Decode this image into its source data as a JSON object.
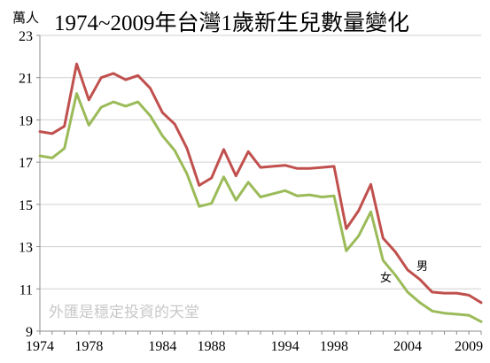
{
  "chart_data": {
    "type": "line",
    "title": "1974~2009年台灣1歲新生兒數量變化",
    "ylabel": "萬人",
    "xlabel": "",
    "xlim": [
      1974,
      2010
    ],
    "ylim": [
      9,
      23
    ],
    "yticks": [
      9,
      11,
      13,
      15,
      17,
      19,
      21,
      23
    ],
    "xticks": [
      1974,
      1978,
      1984,
      1988,
      1994,
      1998,
      2004,
      2009
    ],
    "grid": "horizontal",
    "watermark": "外匯是穩定投資的天堂",
    "x": [
      1974,
      1975,
      1976,
      1977,
      1978,
      1979,
      1980,
      1981,
      1982,
      1983,
      1984,
      1985,
      1986,
      1987,
      1988,
      1989,
      1990,
      1991,
      1992,
      1993,
      1994,
      1995,
      1996,
      1997,
      1998,
      1999,
      2000,
      2001,
      2002,
      2003,
      2004,
      2005,
      2006,
      2007,
      2008,
      2009,
      2010
    ],
    "series": [
      {
        "name": "男",
        "color": "#c0504d",
        "values": [
          18.45,
          18.35,
          18.7,
          21.65,
          19.95,
          21.0,
          21.2,
          20.9,
          21.1,
          20.5,
          19.35,
          18.8,
          17.65,
          15.9,
          16.25,
          17.6,
          16.35,
          17.5,
          16.75,
          16.8,
          16.85,
          16.7,
          16.7,
          16.75,
          16.8,
          13.85,
          14.7,
          15.95,
          13.4,
          12.75,
          11.9,
          11.45,
          10.85,
          10.8,
          10.8,
          10.7,
          10.35
        ]
      },
      {
        "name": "女",
        "color": "#9bbb59",
        "values": [
          17.3,
          17.2,
          17.65,
          20.25,
          18.75,
          19.6,
          19.85,
          19.65,
          19.85,
          19.2,
          18.25,
          17.55,
          16.45,
          14.9,
          15.05,
          16.3,
          15.2,
          16.05,
          15.35,
          15.5,
          15.65,
          15.4,
          15.45,
          15.35,
          15.4,
          12.8,
          13.5,
          14.65,
          12.35,
          11.65,
          10.85,
          10.35,
          9.95,
          9.85,
          9.8,
          9.75,
          9.45
        ]
      }
    ]
  }
}
